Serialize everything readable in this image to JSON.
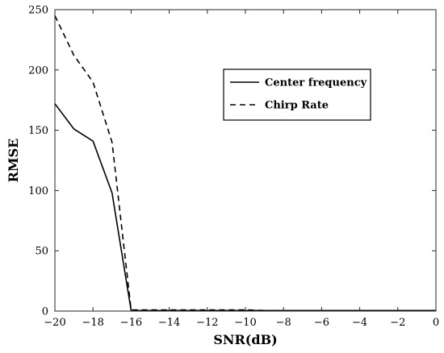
{
  "chart_data": {
    "type": "line",
    "title": "",
    "xlabel": "SNR(dB)",
    "ylabel": "RMSE",
    "xlim": [
      -20,
      0
    ],
    "ylim": [
      0,
      250
    ],
    "x_ticks": [
      -20,
      -18,
      -16,
      -14,
      -12,
      -10,
      -8,
      -6,
      -4,
      -2,
      0
    ],
    "y_ticks": [
      0,
      50,
      100,
      150,
      200,
      250
    ],
    "x_tick_labels": [
      "−20",
      "−18",
      "−16",
      "−14",
      "−12",
      "−10",
      "−8",
      "−6",
      "−4",
      "−2",
      "0"
    ],
    "y_tick_labels": [
      "0",
      "50",
      "100",
      "150",
      "200",
      "250"
    ],
    "grid": false,
    "legend_position": "top-right",
    "series": [
      {
        "name": "Center frequency",
        "line_style": "solid",
        "color": "#000000",
        "x": [
          -20,
          -19,
          -18,
          -17,
          -16,
          -15,
          -14,
          -13,
          -12,
          -11,
          -10,
          -9,
          -8,
          -7,
          -6,
          -5,
          -4,
          -3,
          -2,
          -1,
          0
        ],
        "y": [
          172,
          151,
          141,
          98,
          0.5,
          0.5,
          0.5,
          0.5,
          0.5,
          0.5,
          0.5,
          0.5,
          0.5,
          0.5,
          0.5,
          0.5,
          0.5,
          0.5,
          0.5,
          0.5,
          0.5
        ]
      },
      {
        "name": "Chirp Rate",
        "line_style": "dashed",
        "color": "#000000",
        "x": [
          -20,
          -19,
          -18,
          -17,
          -16,
          -15,
          -14,
          -13,
          -12,
          -11,
          -10,
          -9,
          -8,
          -7,
          -6,
          -5,
          -4,
          -3,
          -2,
          -1,
          0
        ],
        "y": [
          245,
          212,
          190,
          140,
          1,
          1,
          1,
          1,
          1,
          1,
          1,
          0.5,
          0.5,
          0.5,
          0.5,
          0.5,
          0.5,
          0.5,
          0.5,
          0.5,
          0.5
        ]
      }
    ]
  }
}
